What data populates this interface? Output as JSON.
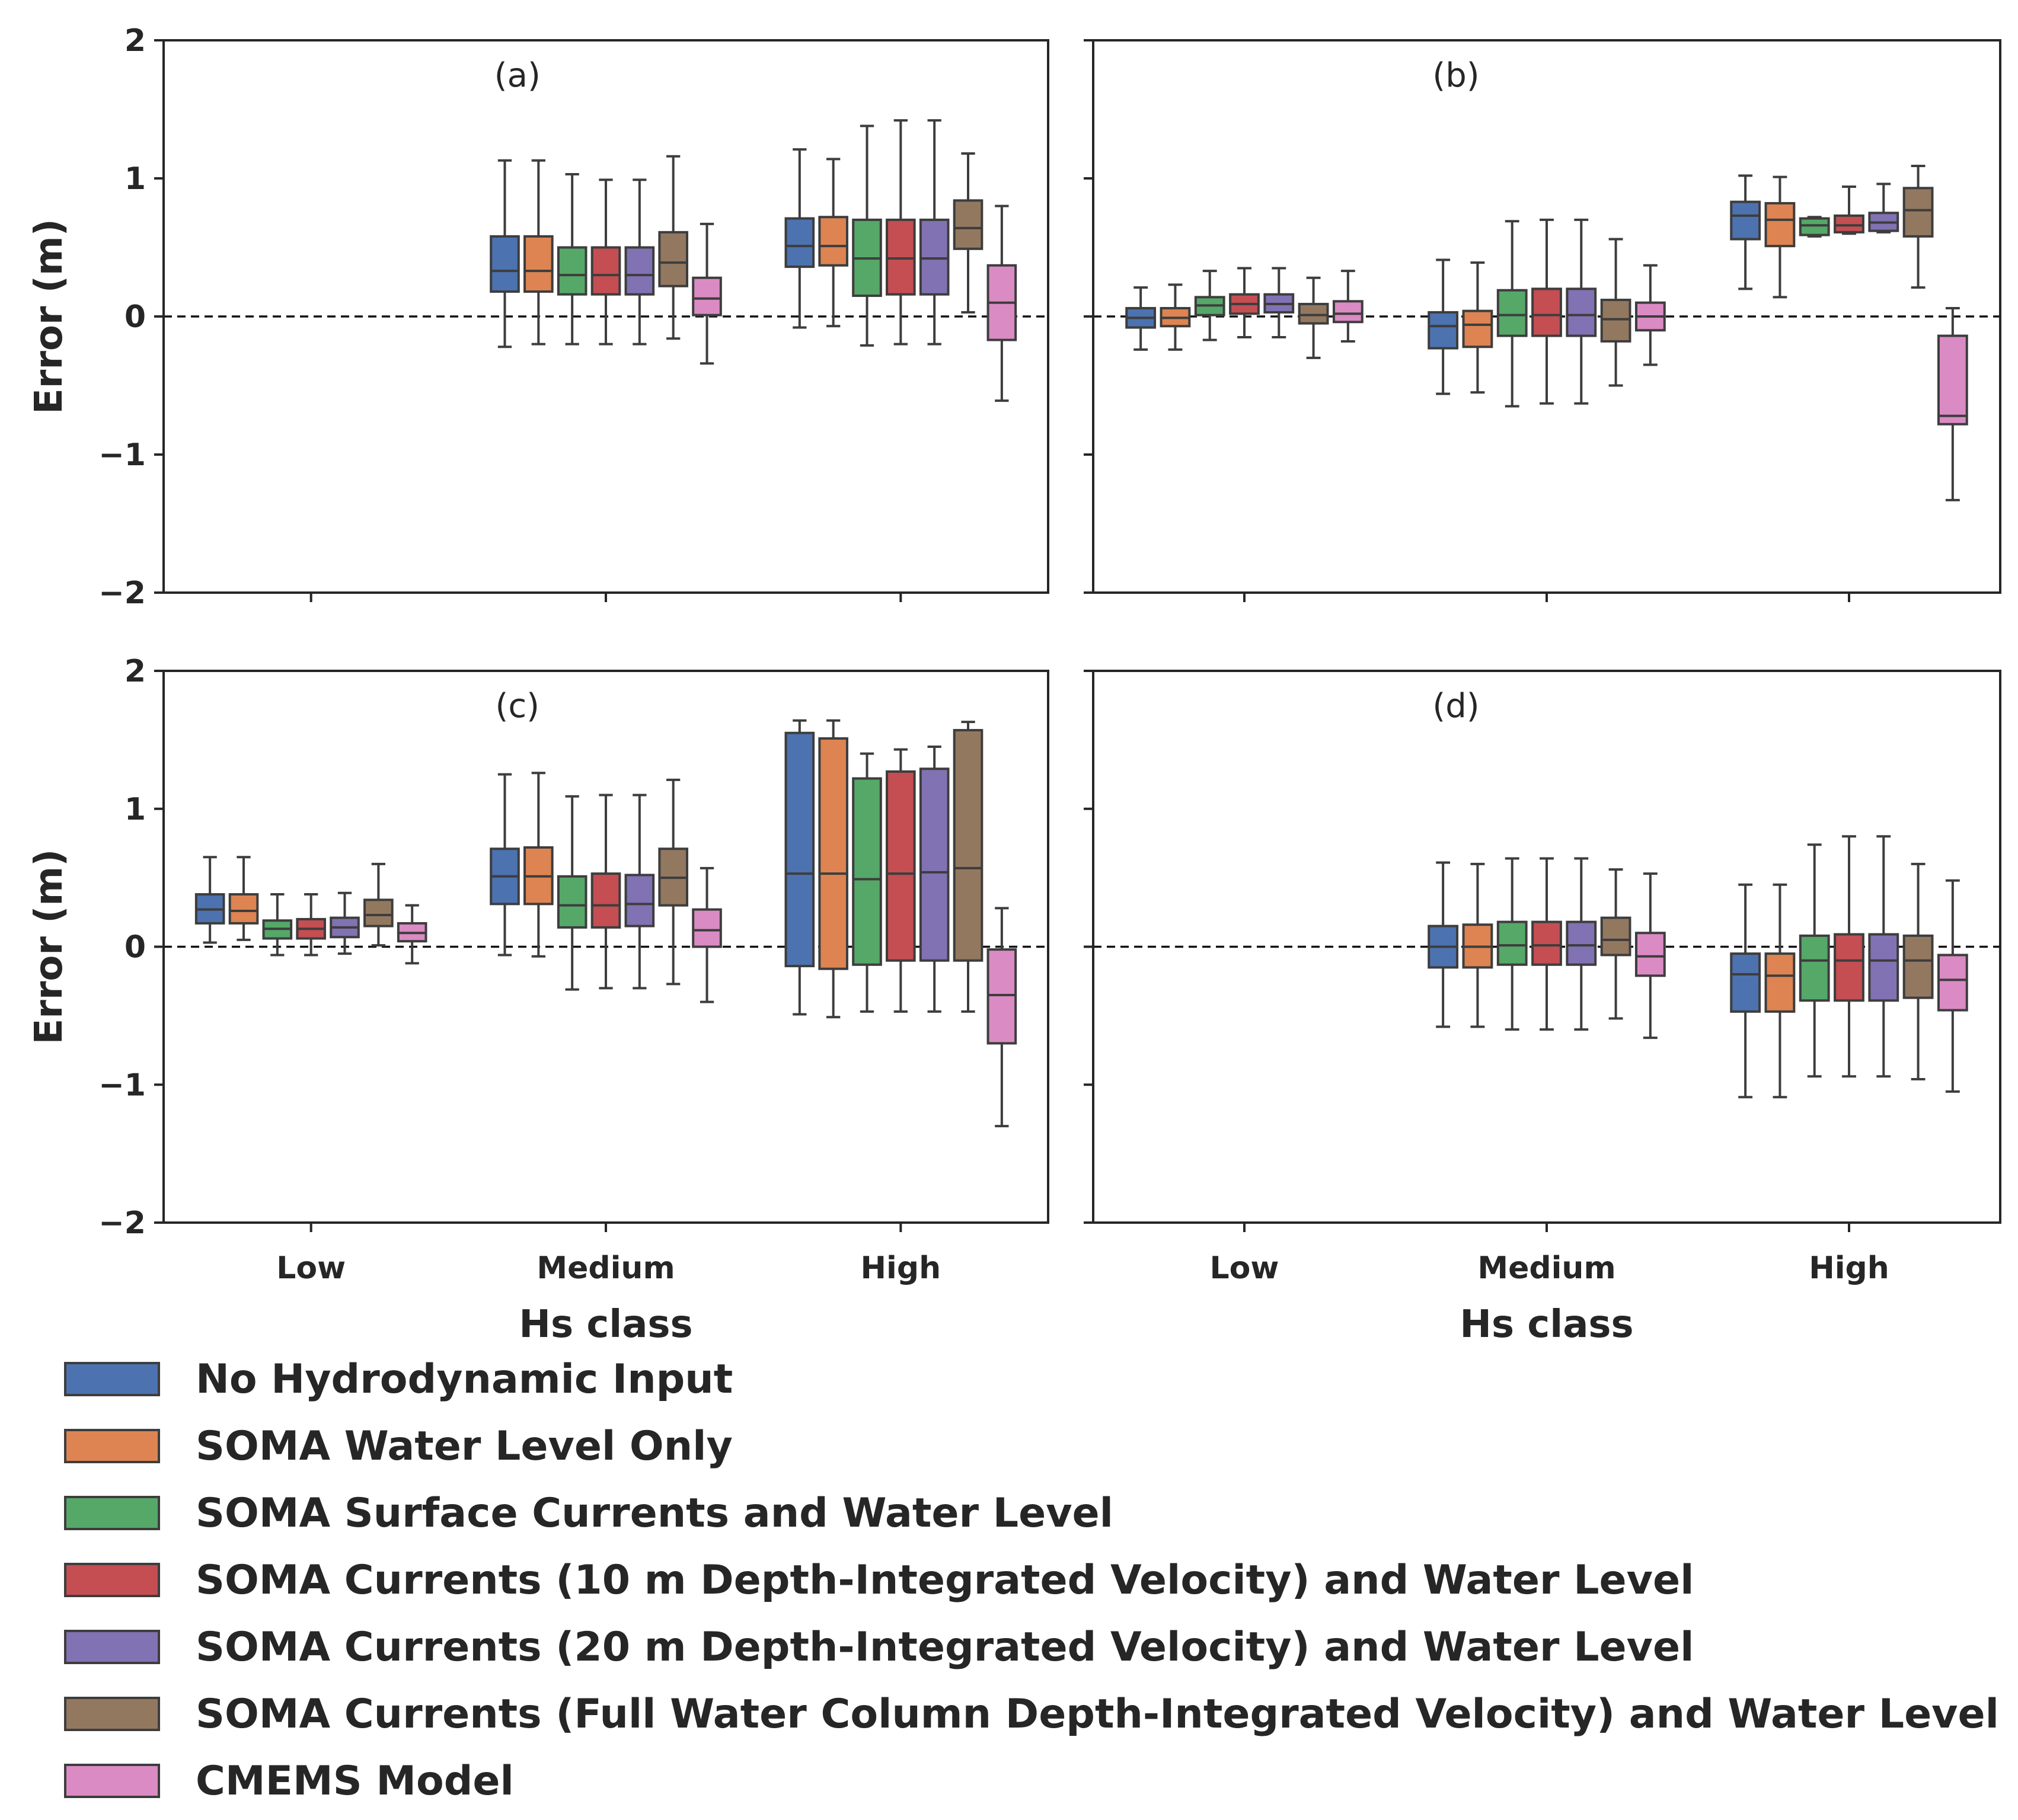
{
  "chart_data": [
    {
      "panel": "(a)",
      "type": "box",
      "categories": [
        "Low",
        "Medium",
        "High"
      ],
      "ylim": [
        -2,
        2
      ],
      "yticks": [
        2,
        1,
        0,
        -1,
        -2
      ],
      "ylabel": "Error (m)",
      "xlabel": "",
      "series": [
        {
          "name": "No Hydrodynamic Input",
          "boxes": [
            null,
            [
              -0.22,
              0.18,
              0.33,
              0.58,
              1.13
            ],
            [
              -0.08,
              0.36,
              0.51,
              0.71,
              1.21
            ]
          ]
        },
        {
          "name": "SOMA Water Level Only",
          "boxes": [
            null,
            [
              -0.2,
              0.18,
              0.33,
              0.58,
              1.13
            ],
            [
              -0.07,
              0.37,
              0.51,
              0.72,
              1.14
            ]
          ]
        },
        {
          "name": "SOMA Surface Currents and Water Level",
          "boxes": [
            null,
            [
              -0.2,
              0.16,
              0.3,
              0.5,
              1.03
            ],
            [
              -0.21,
              0.15,
              0.42,
              0.7,
              1.38
            ]
          ]
        },
        {
          "name": "SOMA Currents (10 m Depth-Integrated Velocity) and Water Level",
          "boxes": [
            null,
            [
              -0.2,
              0.16,
              0.3,
              0.5,
              0.99
            ],
            [
              -0.2,
              0.16,
              0.42,
              0.7,
              1.42
            ]
          ]
        },
        {
          "name": "SOMA Currents (20 m Depth-Integrated Velocity) and Water Level",
          "boxes": [
            null,
            [
              -0.2,
              0.16,
              0.3,
              0.5,
              0.99
            ],
            [
              -0.2,
              0.16,
              0.42,
              0.7,
              1.42
            ]
          ]
        },
        {
          "name": "SOMA Currents (Full Water Column Depth-Integrated Velocity) and Water Level",
          "boxes": [
            null,
            [
              -0.16,
              0.22,
              0.39,
              0.61,
              1.16
            ],
            [
              0.03,
              0.49,
              0.64,
              0.84,
              1.18
            ]
          ]
        },
        {
          "name": "CMEMS Model",
          "boxes": [
            null,
            [
              -0.34,
              0.01,
              0.13,
              0.28,
              0.67
            ],
            [
              -0.61,
              -0.17,
              0.1,
              0.37,
              0.8
            ]
          ]
        }
      ]
    },
    {
      "panel": "(b)",
      "type": "box",
      "categories": [
        "Low",
        "Medium",
        "High"
      ],
      "ylim": [
        -2,
        2
      ],
      "yticks": [],
      "ylabel": "",
      "xlabel": "",
      "series": [
        {
          "name": "No Hydrodynamic Input",
          "boxes": [
            [
              -0.24,
              -0.08,
              -0.01,
              0.06,
              0.21
            ],
            [
              -0.56,
              -0.23,
              -0.07,
              0.03,
              0.41
            ],
            [
              0.2,
              0.56,
              0.73,
              0.83,
              1.02
            ]
          ]
        },
        {
          "name": "SOMA Water Level Only",
          "boxes": [
            [
              -0.24,
              -0.07,
              -0.01,
              0.06,
              0.23
            ],
            [
              -0.55,
              -0.22,
              -0.06,
              0.04,
              0.39
            ],
            [
              0.14,
              0.51,
              0.7,
              0.82,
              1.01
            ]
          ]
        },
        {
          "name": "SOMA Surface Currents and Water Level",
          "boxes": [
            [
              -0.17,
              0.01,
              0.08,
              0.14,
              0.33
            ],
            [
              -0.65,
              -0.14,
              0.01,
              0.19,
              0.69
            ],
            [
              0.58,
              0.59,
              0.66,
              0.71,
              0.72
            ]
          ]
        },
        {
          "name": "SOMA Currents (10 m Depth-Integrated Velocity) and Water Level",
          "boxes": [
            [
              -0.15,
              0.02,
              0.09,
              0.16,
              0.35
            ],
            [
              -0.63,
              -0.14,
              0.01,
              0.2,
              0.7
            ],
            [
              0.6,
              0.61,
              0.66,
              0.73,
              0.94
            ]
          ]
        },
        {
          "name": "SOMA Currents (20 m Depth-Integrated Velocity) and Water Level",
          "boxes": [
            [
              -0.15,
              0.03,
              0.09,
              0.16,
              0.35
            ],
            [
              -0.63,
              -0.14,
              0.01,
              0.2,
              0.7
            ],
            [
              0.61,
              0.62,
              0.68,
              0.75,
              0.96
            ]
          ]
        },
        {
          "name": "SOMA Currents (Full Water Column Depth-Integrated Velocity) and Water Level",
          "boxes": [
            [
              -0.3,
              -0.05,
              0.01,
              0.09,
              0.28
            ],
            [
              -0.5,
              -0.18,
              -0.02,
              0.12,
              0.56
            ],
            [
              0.21,
              0.58,
              0.77,
              0.93,
              1.09
            ]
          ]
        },
        {
          "name": "CMEMS Model",
          "boxes": [
            [
              -0.18,
              -0.04,
              0.02,
              0.11,
              0.33
            ],
            [
              -0.35,
              -0.1,
              0.0,
              0.1,
              0.37
            ],
            [
              -1.33,
              -0.78,
              -0.72,
              -0.14,
              0.06
            ]
          ]
        }
      ]
    },
    {
      "panel": "(c)",
      "type": "box",
      "categories": [
        "Low",
        "Medium",
        "High"
      ],
      "ylim": [
        -2,
        2
      ],
      "yticks": [
        2,
        1,
        0,
        -1,
        -2
      ],
      "ylabel": "Error (m)",
      "xlabel": "Hs class",
      "series": [
        {
          "name": "No Hydrodynamic Input",
          "boxes": [
            [
              0.03,
              0.17,
              0.27,
              0.38,
              0.65
            ],
            [
              -0.06,
              0.31,
              0.51,
              0.71,
              1.25
            ],
            [
              -0.49,
              -0.14,
              0.53,
              1.55,
              1.64
            ]
          ]
        },
        {
          "name": "SOMA Water Level Only",
          "boxes": [
            [
              0.05,
              0.17,
              0.26,
              0.38,
              0.65
            ],
            [
              -0.07,
              0.31,
              0.51,
              0.72,
              1.26
            ],
            [
              -0.51,
              -0.16,
              0.53,
              1.51,
              1.64
            ]
          ]
        },
        {
          "name": "SOMA Surface Currents and Water Level",
          "boxes": [
            [
              -0.06,
              0.06,
              0.13,
              0.19,
              0.38
            ],
            [
              -0.31,
              0.14,
              0.3,
              0.51,
              1.09
            ],
            [
              -0.47,
              -0.13,
              0.49,
              1.22,
              1.4
            ]
          ]
        },
        {
          "name": "SOMA Currents (10 m Depth-Integrated Velocity) and Water Level",
          "boxes": [
            [
              -0.06,
              0.06,
              0.13,
              0.2,
              0.38
            ],
            [
              -0.3,
              0.14,
              0.3,
              0.53,
              1.1
            ],
            [
              -0.47,
              -0.1,
              0.53,
              1.27,
              1.43
            ]
          ]
        },
        {
          "name": "SOMA Currents (20 m Depth-Integrated Velocity) and Water Level",
          "boxes": [
            [
              -0.05,
              0.07,
              0.14,
              0.21,
              0.39
            ],
            [
              -0.3,
              0.15,
              0.31,
              0.52,
              1.1
            ],
            [
              -0.47,
              -0.1,
              0.54,
              1.29,
              1.45
            ]
          ]
        },
        {
          "name": "SOMA Currents (Full Water Column Depth-Integrated Velocity) and Water Level",
          "boxes": [
            [
              0.01,
              0.15,
              0.23,
              0.34,
              0.6
            ],
            [
              -0.27,
              0.3,
              0.5,
              0.71,
              1.21
            ],
            [
              -0.47,
              -0.1,
              0.57,
              1.57,
              1.63
            ]
          ]
        },
        {
          "name": "CMEMS Model",
          "boxes": [
            [
              -0.12,
              0.04,
              0.1,
              0.17,
              0.3
            ],
            [
              -0.4,
              0.0,
              0.12,
              0.27,
              0.57
            ],
            [
              -1.3,
              -0.7,
              -0.35,
              -0.02,
              0.28
            ]
          ]
        }
      ]
    },
    {
      "panel": "(d)",
      "type": "box",
      "categories": [
        "Low",
        "Medium",
        "High"
      ],
      "ylim": [
        -2,
        2
      ],
      "yticks": [],
      "ylabel": "",
      "xlabel": "Hs class",
      "series": [
        {
          "name": "No Hydrodynamic Input",
          "boxes": [
            null,
            [
              -0.58,
              -0.15,
              0.0,
              0.15,
              0.61
            ],
            [
              -1.09,
              -0.47,
              -0.2,
              -0.05,
              0.45
            ]
          ]
        },
        {
          "name": "SOMA Water Level Only",
          "boxes": [
            null,
            [
              -0.58,
              -0.15,
              0.0,
              0.16,
              0.6
            ],
            [
              -1.09,
              -0.47,
              -0.21,
              -0.05,
              0.45
            ]
          ]
        },
        {
          "name": "SOMA Surface Currents and Water Level",
          "boxes": [
            null,
            [
              -0.6,
              -0.13,
              0.01,
              0.18,
              0.64
            ],
            [
              -0.94,
              -0.39,
              -0.1,
              0.08,
              0.74
            ]
          ]
        },
        {
          "name": "SOMA Currents (10 m Depth-Integrated Velocity) and Water Level",
          "boxes": [
            null,
            [
              -0.6,
              -0.13,
              0.01,
              0.18,
              0.64
            ],
            [
              -0.94,
              -0.39,
              -0.1,
              0.09,
              0.8
            ]
          ]
        },
        {
          "name": "SOMA Currents (20 m Depth-Integrated Velocity) and Water Level",
          "boxes": [
            null,
            [
              -0.6,
              -0.13,
              0.01,
              0.18,
              0.64
            ],
            [
              -0.94,
              -0.39,
              -0.1,
              0.09,
              0.8
            ]
          ]
        },
        {
          "name": "SOMA Currents (Full Water Column Depth-Integrated Velocity) and Water Level",
          "boxes": [
            null,
            [
              -0.52,
              -0.06,
              0.05,
              0.21,
              0.56
            ],
            [
              -0.96,
              -0.37,
              -0.1,
              0.08,
              0.6
            ]
          ]
        },
        {
          "name": "CMEMS Model",
          "boxes": [
            null,
            [
              -0.66,
              -0.21,
              -0.07,
              0.1,
              0.53
            ],
            [
              -1.05,
              -0.46,
              -0.24,
              -0.06,
              0.48
            ]
          ]
        }
      ]
    }
  ],
  "series_colors": [
    "#4c72b0",
    "#dd8452",
    "#55a868",
    "#c44e52",
    "#8172b3",
    "#937860",
    "#da8bc3"
  ],
  "legend": {
    "entries": [
      "No Hydrodynamic Input",
      "SOMA Water Level Only",
      "SOMA Surface Currents and Water Level",
      "SOMA Currents (10 m Depth-Integrated Velocity) and Water Level",
      "SOMA Currents (20 m Depth-Integrated Velocity) and Water Level",
      "SOMA Currents (Full Water Column Depth-Integrated Velocity) and Water Level",
      "CMEMS Model"
    ],
    "placement": "bottom-left"
  }
}
